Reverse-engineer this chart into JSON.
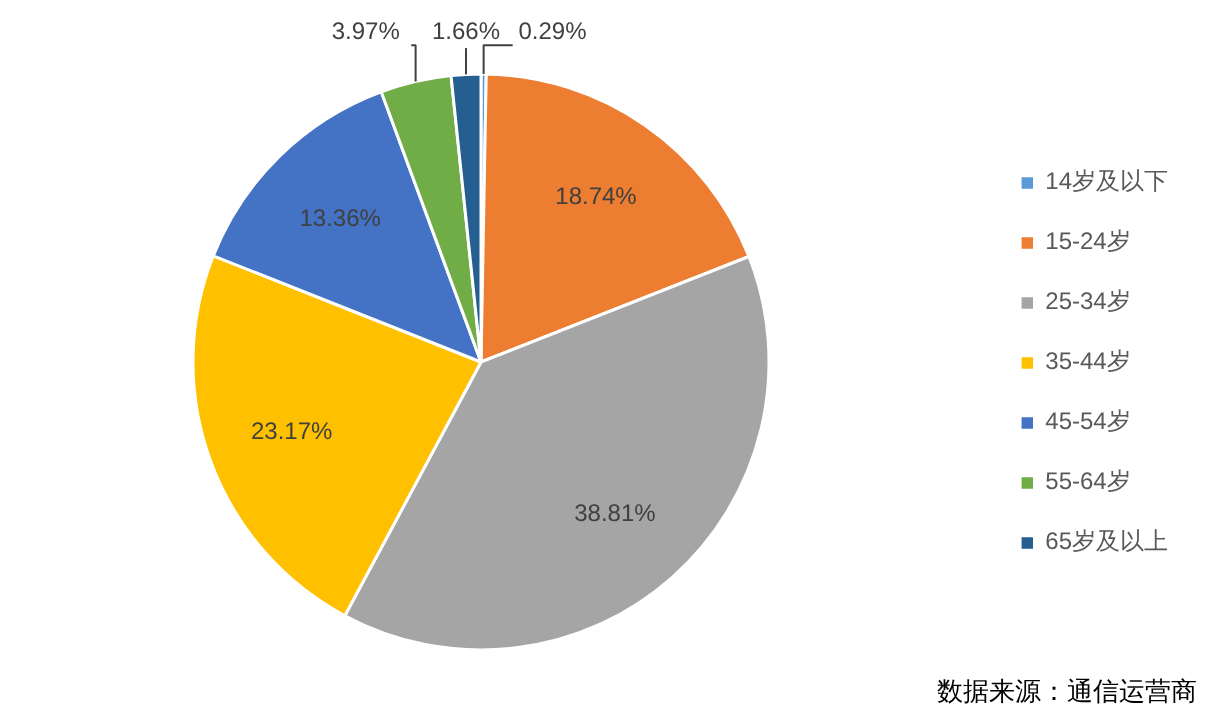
{
  "chart_data": {
    "type": "pie",
    "categories": [
      "14岁及以下",
      "15-24岁",
      "25-34岁",
      "35-44岁",
      "45-54岁",
      "55-64岁",
      "65岁及以上"
    ],
    "values": [
      0.29,
      18.74,
      38.81,
      23.17,
      13.36,
      3.97,
      1.66
    ],
    "colors": [
      "#5b9bd5",
      "#ed7d31",
      "#a5a5a5",
      "#ffc000",
      "#4472c4",
      "#70ad47",
      "#255e91"
    ],
    "value_labels": [
      "0.29%",
      "18.74%",
      "38.81%",
      "23.17%",
      "13.36%",
      "3.97%",
      "1.66%"
    ],
    "legend": "right",
    "annotations": [
      "数据来源：通信运营商"
    ]
  }
}
